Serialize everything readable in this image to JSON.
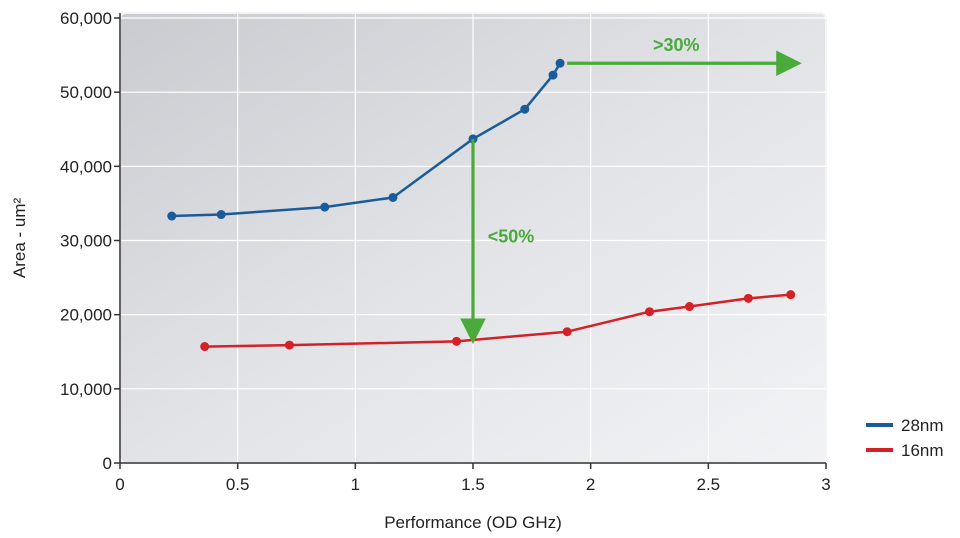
{
  "chart_data": {
    "type": "line",
    "title": "",
    "xlabel": "Performance (OD GHz)",
    "ylabel": "Area - um²",
    "xlim": [
      0,
      3
    ],
    "ylim": [
      0,
      60000
    ],
    "xticks": [
      0,
      0.5,
      1,
      1.5,
      2,
      2.5,
      3
    ],
    "xtick_labels": [
      "0",
      "0.5",
      "1",
      "1.5",
      "2",
      "2.5",
      "3"
    ],
    "yticks": [
      0,
      10000,
      20000,
      30000,
      40000,
      50000,
      60000
    ],
    "ytick_labels": [
      "0",
      "10,000",
      "20,000",
      "30,000",
      "40,000",
      "50,000",
      "60,000"
    ],
    "grid": true,
    "legend_position": "bottom-right-outside",
    "series": [
      {
        "name": "28nm",
        "color": "#1a5c9a",
        "x": [
          0.22,
          0.43,
          0.87,
          1.16,
          1.5,
          1.72,
          1.84,
          1.87
        ],
        "y": [
          33300,
          33500,
          34500,
          35800,
          43700,
          47700,
          52300,
          53900
        ]
      },
      {
        "name": "16nm",
        "color": "#d42027",
        "x": [
          0.36,
          0.72,
          1.43,
          1.9,
          2.25,
          2.42,
          2.67,
          2.85
        ],
        "y": [
          15700,
          15900,
          16400,
          17700,
          20400,
          21100,
          22200,
          22700
        ]
      }
    ],
    "annotations": [
      {
        "text": ">30%",
        "color": "#4aaa3a",
        "type": "arrow-right",
        "from": [
          1.9,
          53900
        ],
        "to": [
          2.87,
          53900
        ]
      },
      {
        "text": "<50%",
        "color": "#4aaa3a",
        "type": "arrow-down",
        "from": [
          1.5,
          43700
        ],
        "to": [
          1.5,
          16900
        ]
      }
    ]
  }
}
